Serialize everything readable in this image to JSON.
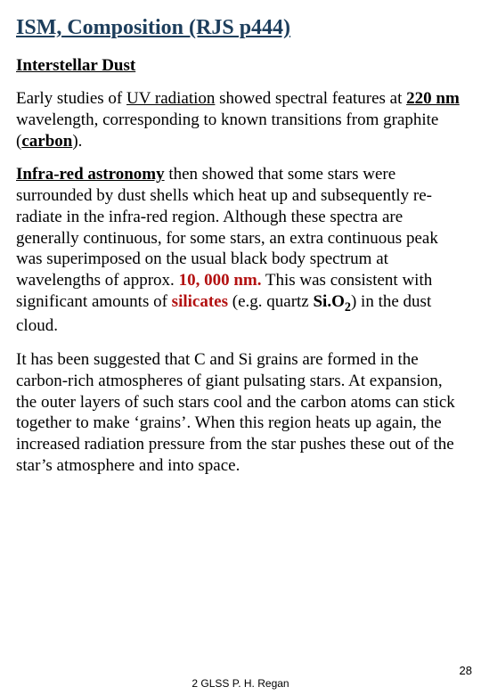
{
  "title": "ISM, Composition (RJS p444)",
  "subtitle": "Interstellar Dust",
  "p1": {
    "t1": "Early studies of ",
    "uv": "UV radiation",
    "t2": " showed spectral features at ",
    "nm": "220 nm",
    "t3": " wavelength, corresponding to known transitions from graphite (",
    "carbon": "carbon",
    "t4": ")."
  },
  "p2": {
    "ir": "Infra-red astronomy",
    "t1": " then showed that some stars were surrounded by dust shells which heat up and subsequently re-radiate in the infra-red region. Although these spectra are generally continuous, for some stars, an extra continuous peak was  superimposed on the usual black body spectrum  at wavelengths of approx. ",
    "v1": "10, 000 nm.",
    "t2": " This was consistent with significant amounts of ",
    "sil": "silicates",
    "t3": " (e.g. quartz ",
    "sio": "Si.O",
    "sub": "2",
    "t4": ") in the dust cloud."
  },
  "p3": "It has been suggested that C and Si grains are formed in the carbon-rich atmospheres of giant pulsating stars. At expansion, the outer layers of such stars cool and the carbon atoms can stick together to make ‘grains’. When this region heats up again, the increased radiation pressure from the star pushes these out of the star’s atmosphere and into space.",
  "footer": "2 GLSS P. H. Regan",
  "pagenum": "28",
  "colors": {
    "title": "#1d3e5c",
    "red": "#b31111",
    "bg": "#ffffff",
    "text": "#000000"
  },
  "fontsize": {
    "title": 24,
    "subtitle": 19,
    "body": 19,
    "footer": 12
  }
}
